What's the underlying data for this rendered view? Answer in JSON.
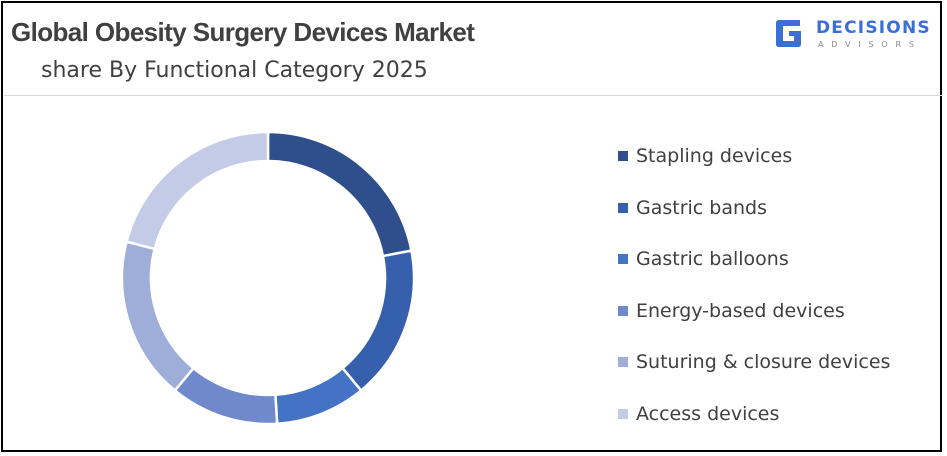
{
  "title": "Global Obesity Surgery Devices Market",
  "subtitle": "share By Functional Category 2025",
  "logo": {
    "name": "DECISIONS",
    "tagline": "ADVISORS",
    "icon": "decisions-advisors-logo-icon"
  },
  "chart_data": {
    "type": "pie",
    "variant": "donut",
    "title": "Global Obesity Surgery Devices Market",
    "subtitle": "share By Functional Category 2025",
    "legend_position": "right",
    "categories": [
      "Stapling devices",
      "Gastric bands",
      "Gastric balloons",
      "Energy-based devices",
      "Suturing & closure devices",
      "Access devices"
    ],
    "values": [
      22,
      17,
      10,
      12,
      18,
      21
    ],
    "colors": [
      "#2e4f8c",
      "#3660ac",
      "#4472c4",
      "#7089cc",
      "#9eaed9",
      "#c3cbe6"
    ]
  }
}
